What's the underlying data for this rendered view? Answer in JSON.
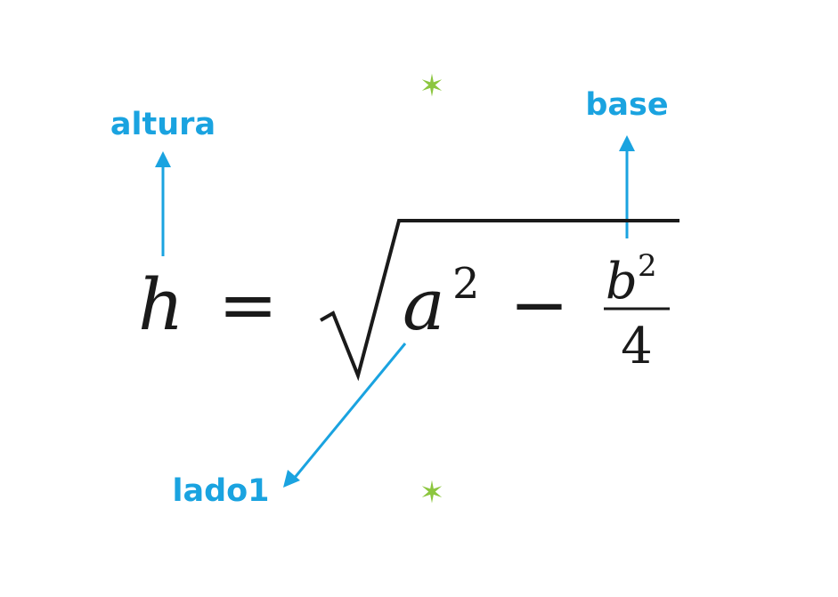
{
  "colors": {
    "annotation": "#1aa3e0",
    "marker": "#8cc63f",
    "formula": "#1a1a1a"
  },
  "labels": {
    "altura": "altura",
    "base": "base",
    "lado1": "lado1"
  },
  "formula": {
    "lhs": "h",
    "equals": "=",
    "a": "a",
    "a_exponent": "2",
    "minus": "−",
    "b": "b",
    "b_exponent": "2",
    "denominator": "4"
  },
  "markers": {
    "top": "✶",
    "bottom": "✶"
  }
}
